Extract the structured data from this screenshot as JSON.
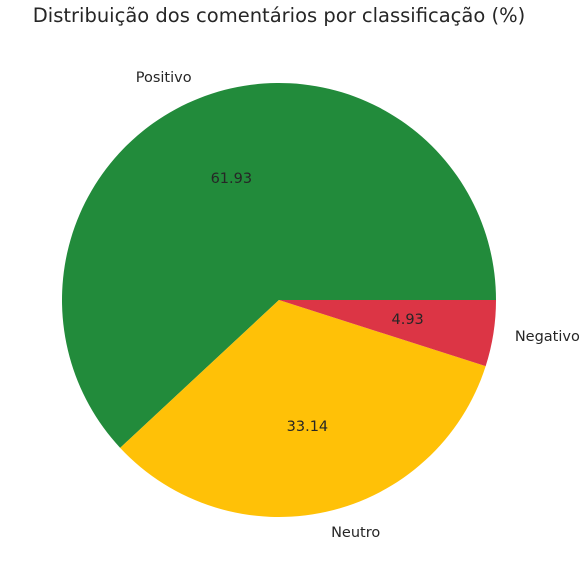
{
  "chart_data": {
    "type": "pie",
    "title": "Distribuição dos comentários por classificação (%)",
    "categories": [
      "Positivo",
      "Neutro",
      "Negativo"
    ],
    "values": [
      61.93,
      33.14,
      4.93
    ],
    "value_labels": [
      "61.93",
      "33.14",
      "4.93"
    ],
    "colors": [
      "#228b3b",
      "#ffc107",
      "#dc3545"
    ],
    "start_angle_deg": 0,
    "direction": "counterclockwise",
    "legend": "none"
  }
}
